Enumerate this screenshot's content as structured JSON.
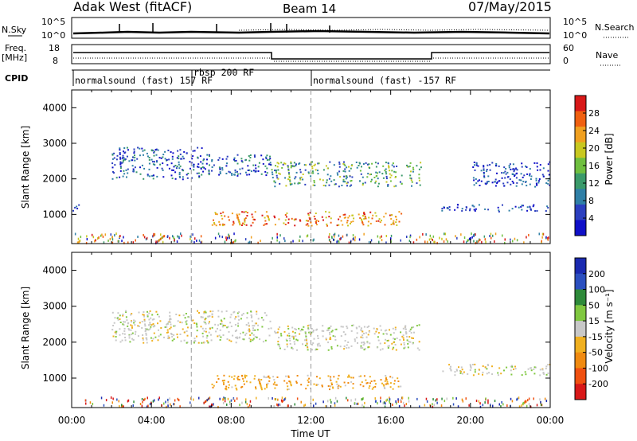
{
  "header": {
    "title": "Adak West (fitACF)",
    "beam": "Beam 14",
    "date": "07/May/2015"
  },
  "panels": {
    "nsky": {
      "label": "N.Sky",
      "left_ticks": [
        "10^5",
        "10^0"
      ],
      "right_ticks": [
        "10^5",
        "10^0"
      ],
      "right_label": "N.Search"
    },
    "freq": {
      "label": "Freq.",
      "unit": "[MHz]",
      "left_ticks": [
        "18",
        "8"
      ],
      "right_ticks": [
        "60",
        "0"
      ],
      "right_label": "Nave"
    },
    "cpid": {
      "label": "CPID",
      "segments": [
        {
          "text": "normalsound (fast) 157 RF",
          "start": 0.0,
          "end": 6.0
        },
        {
          "text": "rbsp 200 RF",
          "start": 6.0,
          "end": 12.0
        },
        {
          "text": "normalsound (fast) -157 RF",
          "start": 12.0,
          "end": 24.0
        }
      ]
    }
  },
  "chart_data": [
    {
      "type": "heatmap",
      "title": "",
      "ylabel": "Slant Range [km]",
      "ylim": [
        180,
        4500
      ],
      "yticks": [
        1000,
        2000,
        3000,
        4000
      ],
      "xlim": [
        0,
        24
      ],
      "colorbar": {
        "label": "Power [dB]",
        "range": [
          0,
          32
        ],
        "ticks": [
          4,
          8,
          12,
          16,
          20,
          24,
          28
        ],
        "colors": [
          "#1010c8",
          "#2b3fbf",
          "#2f7fa6",
          "#3a9a6a",
          "#6fbf3f",
          "#c8c820",
          "#f0a020",
          "#f06010",
          "#d81818"
        ]
      },
      "bands": [
        {
          "x": [
            0.0,
            0.5
          ],
          "y": [
            1100,
            1300
          ],
          "level": "low"
        },
        {
          "x": [
            2.0,
            6.5
          ],
          "y": [
            2000,
            2900
          ],
          "level": "mid"
        },
        {
          "x": [
            6.5,
            10.0
          ],
          "y": [
            2100,
            2700
          ],
          "level": "mid"
        },
        {
          "x": [
            10.0,
            17.5
          ],
          "y": [
            1800,
            2500
          ],
          "level": "mid-high"
        },
        {
          "x": [
            7.0,
            16.5
          ],
          "y": [
            700,
            1100
          ],
          "level": "high"
        },
        {
          "x": [
            18.5,
            24.0
          ],
          "y": [
            1100,
            1300
          ],
          "level": "low"
        },
        {
          "x": [
            20.0,
            24.0
          ],
          "y": [
            1800,
            2500
          ],
          "level": "low"
        }
      ]
    },
    {
      "type": "heatmap",
      "title": "",
      "ylabel": "Slant Range [km]",
      "xlabel": "Time UT",
      "ylim": [
        180,
        4500
      ],
      "yticks": [
        1000,
        2000,
        3000,
        4000
      ],
      "xlim": [
        0,
        24
      ],
      "xticks": [
        "00:00",
        "04:00",
        "08:00",
        "12:00",
        "16:00",
        "20:00",
        "00:00"
      ],
      "colorbar": {
        "label": "Velocity [m s⁻¹]",
        "range": [
          -250,
          250
        ],
        "ticks": [
          200,
          100,
          50,
          15,
          -15,
          -50,
          -100,
          -200
        ],
        "colors": [
          "#d81818",
          "#f05010",
          "#f08a10",
          "#f0b020",
          "#c8c8c8",
          "#80c840",
          "#2e8a3a",
          "#2b4fbf",
          "#1a2ab0"
        ]
      },
      "bands": [
        {
          "x": [
            2.0,
            10.0
          ],
          "y": [
            2000,
            2900
          ],
          "level": "ground"
        },
        {
          "x": [
            10.0,
            17.5
          ],
          "y": [
            1800,
            2500
          ],
          "level": "ground"
        },
        {
          "x": [
            7.0,
            16.5
          ],
          "y": [
            700,
            1100
          ],
          "level": "negative"
        },
        {
          "x": [
            18.5,
            24.0
          ],
          "y": [
            1100,
            1400
          ],
          "level": "ground"
        }
      ]
    }
  ]
}
